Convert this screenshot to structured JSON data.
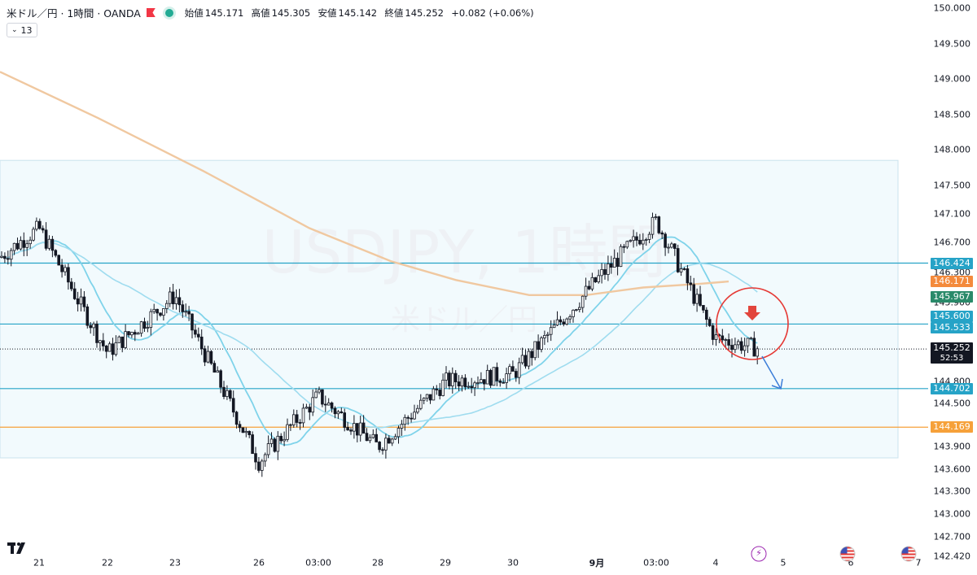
{
  "header": {
    "symbol": "米ドル／円 · 1時間 · OANDA",
    "open_label": "始値",
    "open": "145.171",
    "high_label": "高値",
    "high": "145.305",
    "low_label": "安値",
    "low": "145.142",
    "close_label": "終値",
    "close": "145.252",
    "change": "+0.082 (+0.06%)"
  },
  "indicator_toggle": {
    "count": "13"
  },
  "watermark": {
    "line1": "USDJPY, 1時間",
    "line2": "米ドル／円"
  },
  "price_axis": {
    "ticks": [
      "150.000",
      "149.500",
      "149.000",
      "148.500",
      "148.000",
      "147.500",
      "147.100",
      "146.700",
      "146.300",
      "145.900",
      "144.800",
      "144.500",
      "143.900",
      "143.600",
      "143.300",
      "143.000",
      "142.700",
      "142.420"
    ],
    "labels": [
      {
        "value": "146.424",
        "color": "#26a3c7"
      },
      {
        "value": "146.171",
        "color": "#f48a3c"
      },
      {
        "value": "145.967",
        "color": "#2a8a6a"
      },
      {
        "value": "145.600",
        "color": "#26a3c7"
      },
      {
        "value": "145.533",
        "color": "#26a3c7"
      },
      {
        "value": "145.252",
        "color": "#131722"
      },
      {
        "value": "144.702",
        "color": "#26a3c7"
      },
      {
        "value": "144.169",
        "color": "#f6a13a"
      }
    ],
    "countdown": "52:53"
  },
  "time_axis": [
    "21",
    "22",
    "23",
    "26",
    "03:00",
    "28",
    "29",
    "30",
    "9月",
    "03:00",
    "4",
    "5",
    "6",
    "7"
  ],
  "chart_data": {
    "type": "candlestick",
    "symbol": "USDJPY",
    "timeframe": "1時間",
    "ylim": [
      142.42,
      150.0
    ],
    "horizontal_lines": [
      146.424,
      145.6,
      144.702,
      144.169
    ],
    "zone": [
      143.75,
      147.85
    ],
    "last_price": 145.252,
    "ohlc": {
      "open": 145.171,
      "high": 145.305,
      "low": 145.142,
      "close": 145.252
    },
    "path_points": [
      {
        "t": "21",
        "p": 146.9
      },
      {
        "t": "22",
        "p": 145.2
      },
      {
        "t": "23",
        "p": 146.0
      },
      {
        "t": "26",
        "p": 143.7
      },
      {
        "t": "03:00",
        "p": 144.6
      },
      {
        "t": "28",
        "p": 143.9
      },
      {
        "t": "29",
        "p": 144.8
      },
      {
        "t": "30",
        "p": 144.9
      },
      {
        "t": "9月",
        "p": 146.2
      },
      {
        "t": "03:00",
        "p": 147.0
      },
      {
        "t": "4",
        "p": 145.4
      }
    ],
    "colors": {
      "ema200": "#f0c8a0",
      "ma_fast": "#7fd3ea",
      "ma_slow": "#9fdcef",
      "zone": "#f2fafd",
      "annotation": "#e53935",
      "arrow": "#3b7dd8"
    }
  },
  "events": [
    {
      "icon": "lightning-event-icon"
    },
    {
      "icon": "us-flag-event-icon"
    },
    {
      "icon": "us-flag-event-icon"
    }
  ]
}
